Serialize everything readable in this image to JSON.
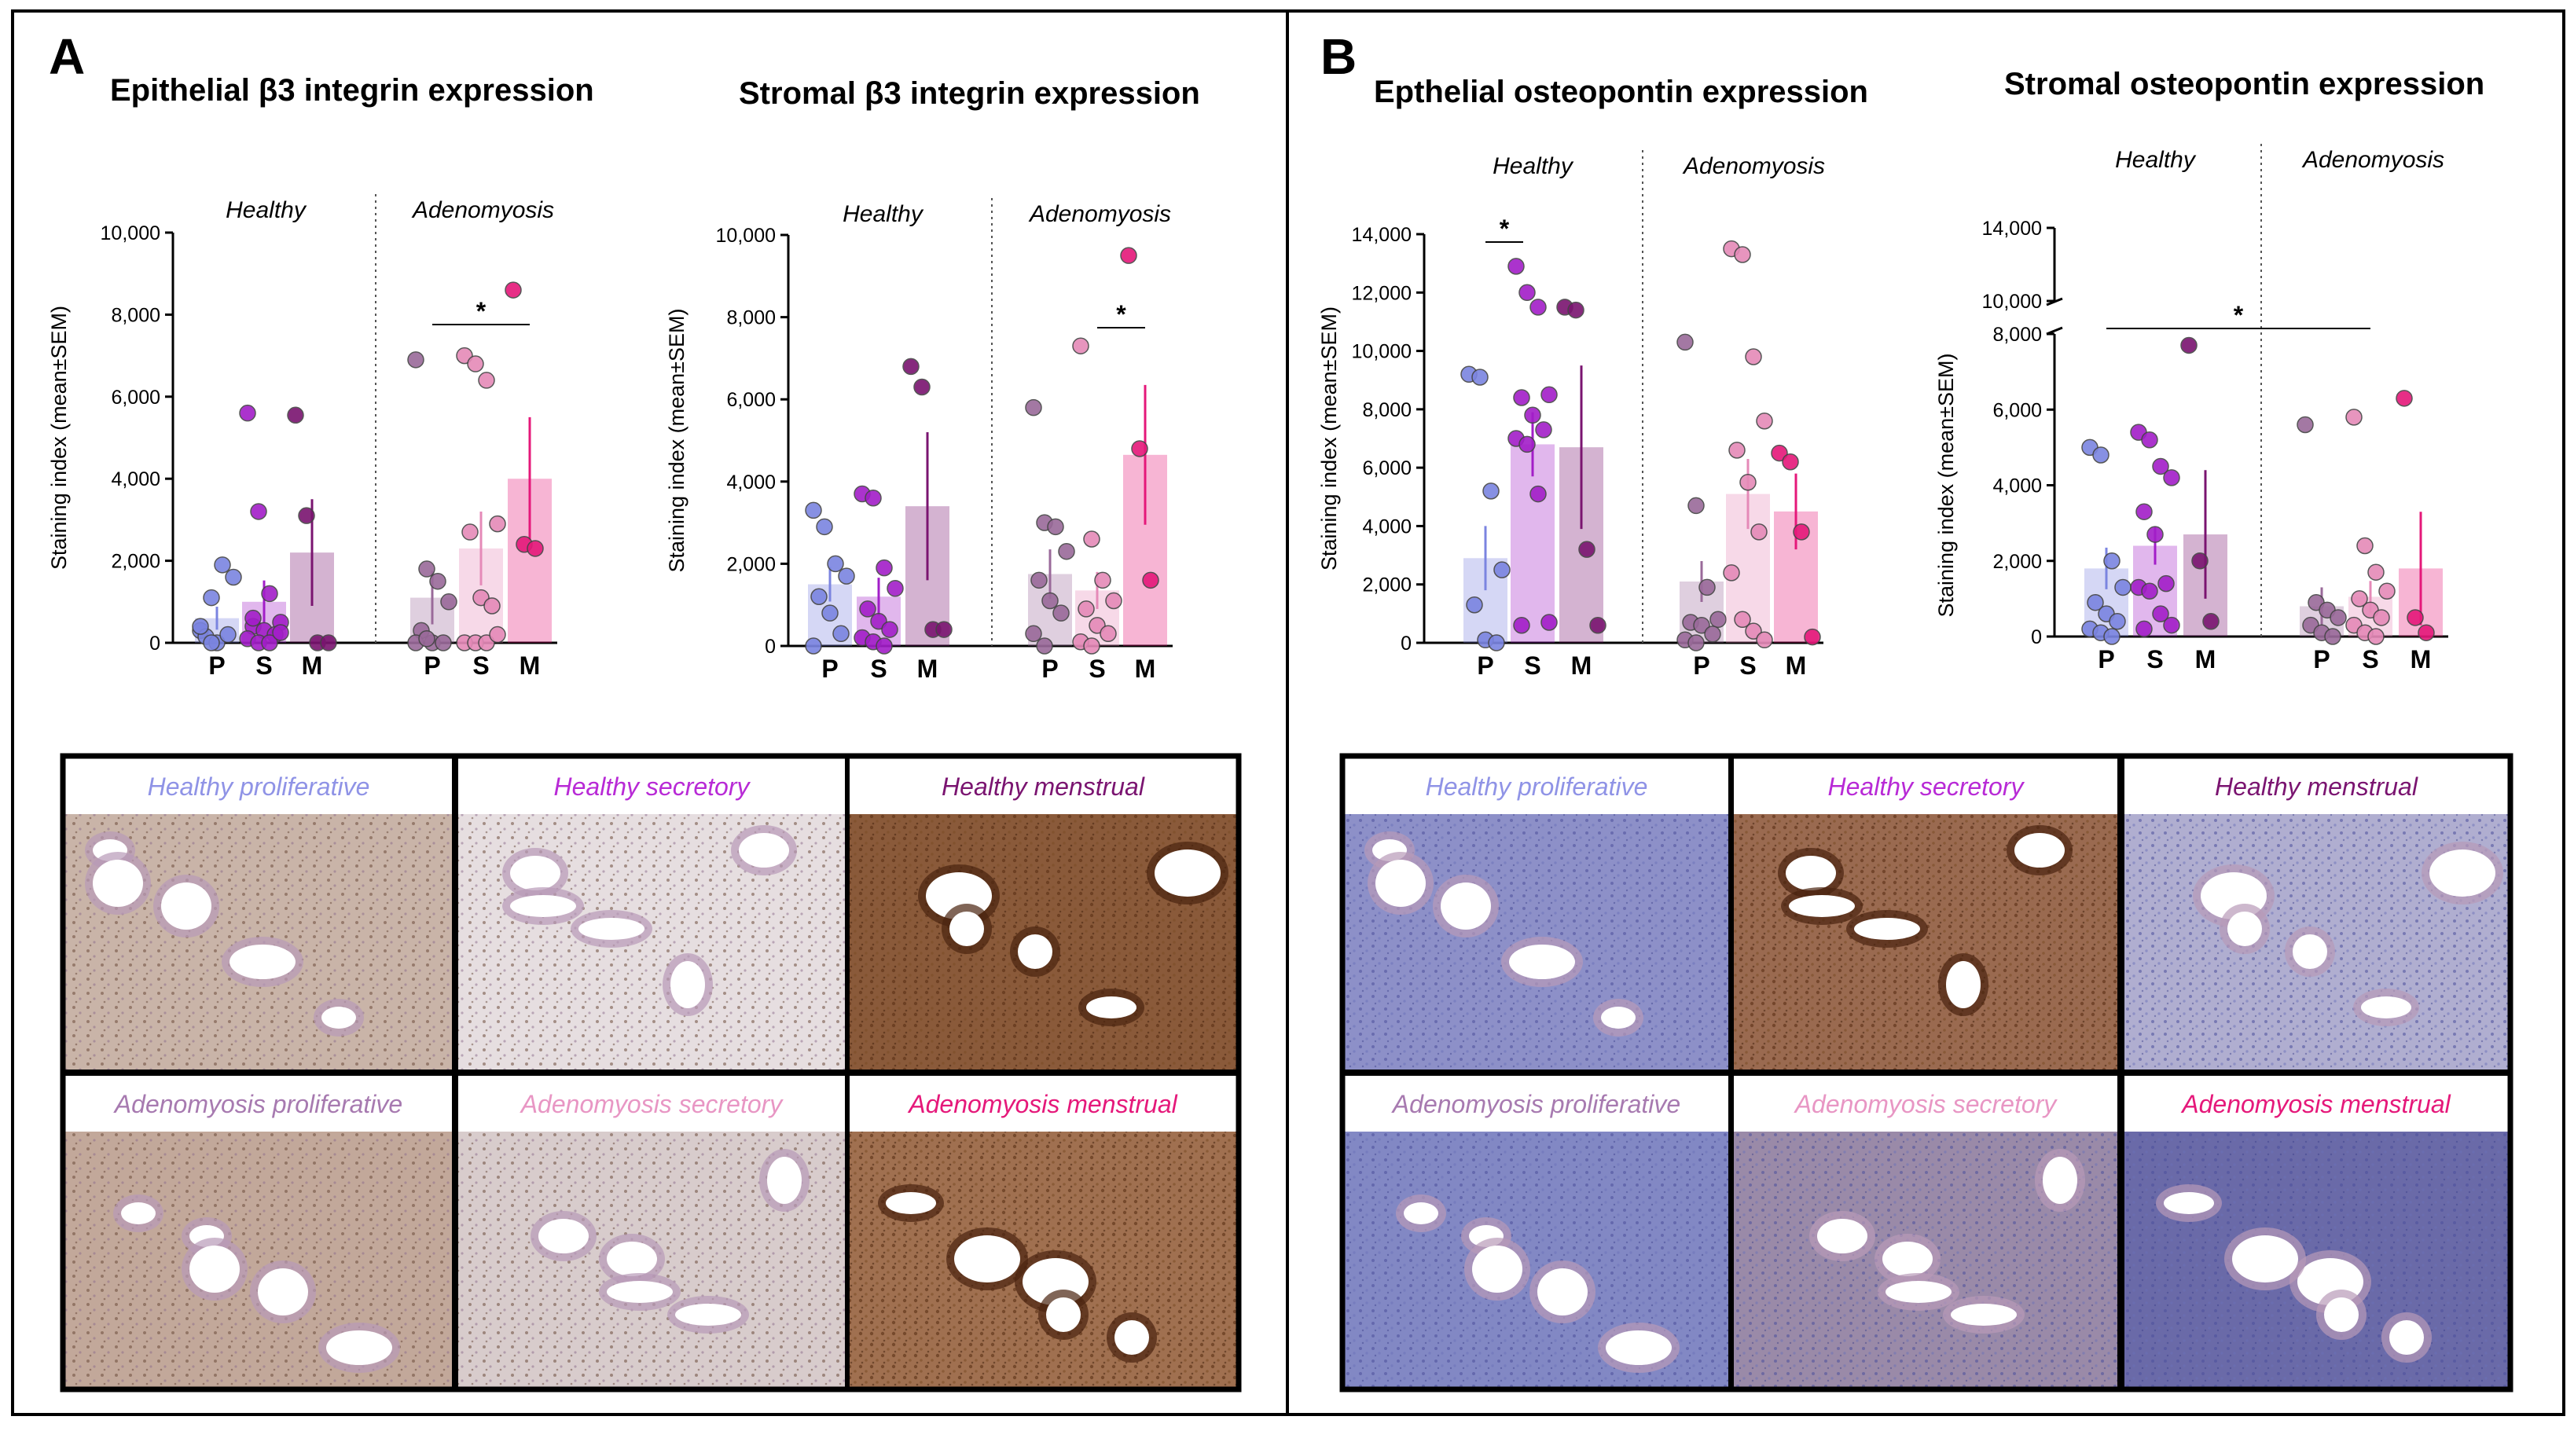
{
  "panels": [
    {
      "letter": "A"
    },
    {
      "letter": "B"
    }
  ],
  "colors": {
    "P": "#7b84e0",
    "S": "#a21ec8",
    "M": "#7a1470",
    "adeno_P": "#9a6a9a",
    "adeno_S": "#e58ab8",
    "adeno_M": "#e5187a"
  },
  "chart_data": [
    {
      "type": "bar",
      "title": "Epithelial β3 integrin expression",
      "ylabel": "Staining index (mean±SEM)",
      "ylim": [
        0,
        10000
      ],
      "yticks": [
        "0",
        "2,000",
        "4,000",
        "6,000",
        "8,000",
        "10,000"
      ],
      "groups": [
        "Healthy",
        "Adenomyosis"
      ],
      "categories": [
        "P",
        "S",
        "M"
      ],
      "series": [
        {
          "name": "Healthy",
          "means": [
            600,
            1000,
            2200
          ],
          "sem": [
            280,
            520,
            1300
          ],
          "points": [
            [
              300,
              1100,
              1900,
              1600,
              150,
              0,
              200,
              400,
              0
            ],
            [
              5600,
              3200,
              1200,
              500,
              400,
              300,
              200,
              100,
              0,
              0,
              250,
              600
            ],
            [
              5550,
              3100,
              0,
              0
            ]
          ]
        },
        {
          "name": "Adenomyosis",
          "means": [
            1100,
            2300,
            4000
          ],
          "sem": [
            650,
            900,
            1500
          ],
          "points": [
            [
              6900,
              1800,
              1500,
              1000,
              300,
              0,
              0,
              0,
              100
            ],
            [
              7000,
              6800,
              6400,
              2900,
              2700,
              1100,
              900,
              0,
              0,
              0,
              200
            ],
            [
              8600,
              2400,
              2300
            ]
          ]
        }
      ],
      "significance": [
        {
          "group": "Adenomyosis",
          "from": "P",
          "to": "M",
          "label": "*"
        }
      ]
    },
    {
      "type": "bar",
      "title": "Stromal β3 integrin expression",
      "ylabel": "Staining index (mean±SEM)",
      "ylim": [
        0,
        10000
      ],
      "yticks": [
        "0",
        "2,000",
        "4,000",
        "6,000",
        "8,000",
        "10,000"
      ],
      "groups": [
        "Healthy",
        "Adenomyosis"
      ],
      "categories": [
        "P",
        "S",
        "M"
      ],
      "series": [
        {
          "name": "Healthy",
          "means": [
            1500,
            1200,
            3400
          ],
          "sem": [
            420,
            460,
            1800
          ],
          "points": [
            [
              3300,
              2900,
              2000,
              1700,
              1200,
              800,
              300,
              0
            ],
            [
              3700,
              3600,
              1900,
              1400,
              900,
              600,
              400,
              200,
              100,
              0
            ],
            [
              6800,
              6300,
              400,
              400
            ]
          ]
        },
        {
          "name": "Adenomyosis",
          "means": [
            1750,
            1350,
            4650
          ],
          "sem": [
            600,
            450,
            1700
          ],
          "points": [
            [
              5800,
              3000,
              2900,
              2300,
              1600,
              1100,
              800,
              300,
              0
            ],
            [
              7300,
              2600,
              1600,
              1100,
              900,
              500,
              300,
              100,
              0
            ],
            [
              9500,
              4800,
              1600
            ]
          ]
        }
      ],
      "significance": [
        {
          "group": "Adenomyosis",
          "from": "S",
          "to": "M",
          "label": "*"
        }
      ]
    },
    {
      "type": "bar",
      "title": "Epthelial osteopontin expression",
      "ylabel": "Staining index (mean±SEM)",
      "ylim": [
        0,
        14000
      ],
      "yticks": [
        "0",
        "2,000",
        "4,000",
        "6,000",
        "8,000",
        "10,000",
        "12,000",
        "14,000"
      ],
      "groups": [
        "Healthy",
        "Adenomyosis"
      ],
      "categories": [
        "P",
        "S",
        "M"
      ],
      "series": [
        {
          "name": "Healthy",
          "means": [
            2900,
            6800,
            6700
          ],
          "sem": [
            1100,
            1100,
            2800
          ],
          "points": [
            [
              9200,
              9100,
              5200,
              2500,
              1300,
              100,
              0
            ],
            [
              12900,
              12000,
              11500,
              8500,
              8400,
              7800,
              7300,
              7000,
              6800,
              5100,
              700,
              600
            ],
            [
              11500,
              11400,
              3200,
              600
            ]
          ]
        },
        {
          "name": "Adenomyosis",
          "means": [
            2100,
            5100,
            4500
          ],
          "sem": [
            700,
            1200,
            1300
          ],
          "points": [
            [
              10300,
              4700,
              1900,
              800,
              700,
              600,
              300,
              100,
              0
            ],
            [
              13500,
              13300,
              9800,
              7600,
              6600,
              5500,
              3800,
              2400,
              800,
              400,
              100
            ],
            [
              6500,
              6200,
              3800,
              200
            ]
          ]
        }
      ],
      "significance": [
        {
          "group": "Healthy",
          "from": "P",
          "to": "S",
          "label": "*"
        }
      ]
    },
    {
      "type": "bar",
      "title": "Stromal osteopontin expression",
      "ylabel": "Staining index (mean±SEM)",
      "ylim": [
        0,
        8000
      ],
      "axis_break": {
        "lower_max": 8000,
        "upper_ticks": [
          10000,
          14000
        ]
      },
      "yticks": [
        "0",
        "2,000",
        "4,000",
        "6,000",
        "8,000",
        "10,000",
        "14,000"
      ],
      "groups": [
        "Healthy",
        "Adenomyosis"
      ],
      "categories": [
        "P",
        "S",
        "M"
      ],
      "series": [
        {
          "name": "Healthy",
          "means": [
            1800,
            2400,
            2700
          ],
          "sem": [
            550,
            500,
            1700
          ],
          "points": [
            [
              5000,
              4800,
              2000,
              1300,
              900,
              600,
              400,
              200,
              100,
              0
            ],
            [
              5400,
              5200,
              4500,
              4200,
              3300,
              2700,
              1400,
              1300,
              1200,
              600,
              300,
              200
            ],
            [
              7700,
              2000,
              400
            ]
          ]
        },
        {
          "name": "Adenomyosis",
          "means": [
            800,
            1050,
            1800
          ],
          "sem": [
            500,
            420,
            1500
          ],
          "points": [
            [
              5600,
              900,
              700,
              500,
              300,
              100,
              0
            ],
            [
              5800,
              2400,
              1700,
              1200,
              1000,
              700,
              500,
              300,
              100,
              0
            ],
            [
              6300,
              500,
              100
            ]
          ]
        }
      ],
      "significance": [
        {
          "group": "between",
          "from": "Healthy P",
          "to": "Adenomyosis S",
          "label": "*"
        }
      ]
    }
  ],
  "micrographs": {
    "A": [
      "Healthy proliferative",
      "Healthy secretory",
      "Healthy menstrual",
      "Adenomyosis proliferative",
      "Adenomyosis secretory",
      "Adenomyosis menstrual"
    ],
    "B": [
      "Healthy proliferative",
      "Healthy secretory",
      "Healthy menstrual",
      "Adenomyosis proliferative",
      "Adenomyosis secretory",
      "Adenomyosis menstrual"
    ]
  }
}
